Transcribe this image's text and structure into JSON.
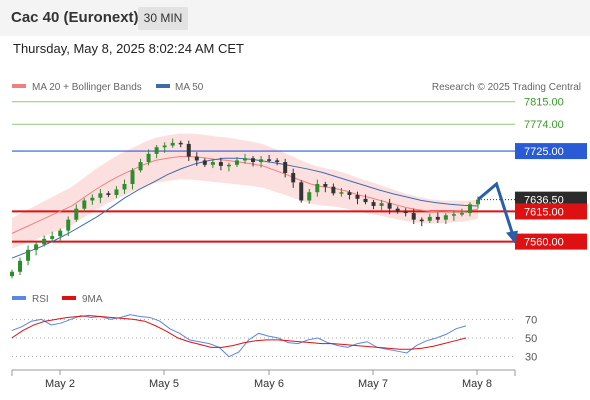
{
  "header": {
    "title": "Cac 40 (Euronext)",
    "timeframe": "30 MIN",
    "datetime": "Thursday, May 8, 2025 8:02:24 AM CET"
  },
  "credit": "Research © 2025 Trading Central",
  "colors": {
    "bollinger_fill": "#fbd3d3",
    "ma20": "#f08080",
    "ma50": "#4169b0",
    "candle_up": "#2e8b2e",
    "candle_down": "#333333",
    "resistance_green": "#90c878",
    "level_blue": "#2a5bd7",
    "support_red": "#dd1111",
    "arrow": "#2a5ea8",
    "rsi": "#5b86e5",
    "rsi_ma": "#dd1111"
  },
  "chart_data": [
    {
      "type": "candlestick",
      "legend": [
        {
          "name": "MA 20 + Bollinger Bands",
          "color": "#f08080"
        },
        {
          "name": "MA 50",
          "color": "#4169b0"
        }
      ],
      "x_ticks": [
        "May 2",
        "May 5",
        "May 6",
        "May 7",
        "May 8"
      ],
      "ylim": [
        7490,
        7840
      ],
      "levels": [
        {
          "label": "7815.00",
          "value": 7815,
          "color": "#90c878",
          "style": "thin"
        },
        {
          "label": "7774.00",
          "value": 7774,
          "color": "#90c878",
          "style": "thin"
        },
        {
          "label": "7725.00",
          "value": 7725,
          "color": "#2a5bd7",
          "style": "normal"
        },
        {
          "label": "7615.00",
          "value": 7615,
          "color": "#dd1111",
          "style": "thick"
        },
        {
          "label": "7560.00",
          "value": 7560,
          "color": "#dd1111",
          "style": "thick"
        }
      ],
      "last_price": {
        "label": "7636.50",
        "value": 7636.5
      },
      "close_series": [
        7505,
        7525,
        7545,
        7555,
        7565,
        7570,
        7580,
        7600,
        7620,
        7635,
        7640,
        7648,
        7645,
        7655,
        7665,
        7690,
        7705,
        7720,
        7732,
        7735,
        7740,
        7738,
        7715,
        7708,
        7700,
        7705,
        7698,
        7700,
        7708,
        7712,
        7705,
        7710,
        7708,
        7705,
        7685,
        7668,
        7635,
        7650,
        7665,
        7660,
        7648,
        7650,
        7645,
        7638,
        7632,
        7625,
        7630,
        7620,
        7615,
        7612,
        7600,
        7598,
        7605,
        7600,
        7608,
        7610,
        7612,
        7628,
        7636.5
      ],
      "ma20": [
        7575,
        7585,
        7595,
        7605,
        7615,
        7625,
        7640,
        7655,
        7668,
        7680,
        7690,
        7700,
        7708,
        7712,
        7715,
        7715,
        7713,
        7710,
        7708,
        7705,
        7702,
        7698,
        7690,
        7682,
        7673,
        7665,
        7660,
        7657,
        7652,
        7645,
        7640,
        7634,
        7628,
        7622,
        7618,
        7615,
        7614,
        7615,
        7616,
        7619
      ],
      "ma50": [
        7530,
        7540,
        7550,
        7562,
        7575,
        7590,
        7605,
        7622,
        7640,
        7655,
        7668,
        7682,
        7693,
        7702,
        7708,
        7712,
        7712,
        7710,
        7706,
        7702,
        7697,
        7692,
        7686,
        7678,
        7670,
        7662,
        7654,
        7647,
        7641,
        7635,
        7631,
        7628,
        7626,
        7625
      ],
      "projection": [
        {
          "x": 0.0,
          "y": 7636.5
        },
        {
          "x": 0.5,
          "y": 7665
        },
        {
          "x": 1.0,
          "y": 7560
        }
      ]
    },
    {
      "type": "line",
      "legend": [
        {
          "name": "RSI",
          "color": "#5b86e5"
        },
        {
          "name": "9MA",
          "color": "#dd1111"
        }
      ],
      "ylim": [
        20,
        80
      ],
      "ticks": [
        "70",
        "50",
        "30"
      ],
      "rsi": [
        58,
        62,
        68,
        70,
        64,
        66,
        70,
        74,
        72,
        73,
        70,
        72,
        75,
        73,
        72,
        68,
        60,
        55,
        48,
        46,
        44,
        40,
        30,
        35,
        48,
        55,
        52,
        50,
        45,
        44,
        48,
        50,
        45,
        42,
        40,
        44,
        46,
        40,
        38,
        36,
        34,
        42,
        47,
        50,
        54,
        60,
        63
      ],
      "rsi_ma": [
        50,
        58,
        64,
        68,
        70,
        72,
        73,
        74,
        73,
        72,
        71,
        70,
        68,
        63,
        57,
        50,
        46,
        43,
        40,
        40,
        42,
        45,
        47,
        48,
        48,
        47,
        46,
        45,
        44,
        44,
        43,
        42,
        41,
        40,
        39,
        38,
        38,
        39,
        41,
        44,
        47,
        50
      ]
    }
  ]
}
